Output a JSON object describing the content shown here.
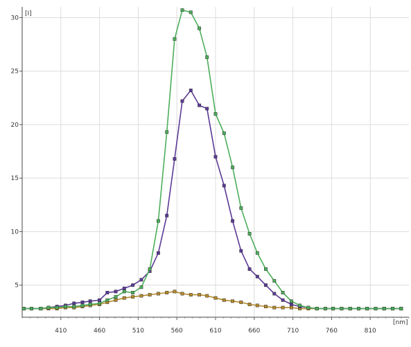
{
  "chart_data": {
    "type": "line",
    "ylabel": "[I]",
    "xlabel": "[nm]",
    "xlim": [
      360,
      860
    ],
    "ylim": [
      2,
      31
    ],
    "x_ticks": [
      410,
      460,
      510,
      560,
      610,
      660,
      710,
      760,
      810
    ],
    "y_ticks": [
      5,
      10,
      15,
      20,
      25,
      30
    ],
    "grid": true,
    "series": [
      {
        "color": "#4cae5a",
        "x": [
          362,
          372,
          384,
          394,
          405,
          416,
          427,
          438,
          448,
          460,
          470,
          481,
          492,
          503,
          514,
          525,
          536,
          547,
          557,
          567,
          578,
          589,
          599,
          610,
          621,
          632,
          643,
          654,
          664,
          675,
          686,
          697,
          708,
          719,
          730,
          741,
          752,
          762,
          773,
          784,
          795,
          806,
          817,
          828,
          839,
          850
        ],
        "values": [
          2.8,
          2.8,
          2.8,
          2.9,
          2.9,
          3.0,
          3.0,
          3.1,
          3.2,
          3.3,
          3.6,
          3.9,
          4.4,
          4.3,
          4.8,
          6.5,
          11.0,
          19.3,
          28.0,
          30.7,
          30.5,
          29.0,
          26.3,
          21.0,
          19.2,
          16.0,
          12.2,
          9.8,
          8.0,
          6.5,
          5.4,
          4.3,
          3.5,
          3.1,
          2.9,
          2.8,
          2.8,
          2.8,
          2.8,
          2.8,
          2.8,
          2.8,
          2.8,
          2.8,
          2.8,
          2.8
        ]
      },
      {
        "color": "#5b3a96",
        "x": [
          362,
          372,
          384,
          394,
          405,
          416,
          427,
          438,
          448,
          460,
          470,
          481,
          492,
          503,
          514,
          525,
          536,
          547,
          557,
          567,
          578,
          589,
          599,
          610,
          621,
          632,
          643,
          654,
          664,
          675,
          686,
          697,
          708,
          719,
          730,
          741,
          752,
          762,
          773,
          784,
          795,
          806,
          817,
          828,
          839,
          850
        ],
        "values": [
          2.8,
          2.8,
          2.8,
          2.9,
          3.0,
          3.1,
          3.3,
          3.4,
          3.5,
          3.6,
          4.3,
          4.4,
          4.7,
          5.0,
          5.5,
          6.3,
          8.0,
          11.5,
          16.8,
          22.2,
          23.2,
          21.8,
          21.5,
          17.0,
          14.3,
          11.0,
          8.2,
          6.5,
          5.8,
          5.0,
          4.2,
          3.6,
          3.2,
          3.0,
          2.9,
          2.8,
          2.8,
          2.8,
          2.8,
          2.8,
          2.8,
          2.8,
          2.8,
          2.8,
          2.8,
          2.8
        ]
      },
      {
        "color": "#b58a2c",
        "x": [
          362,
          372,
          384,
          394,
          405,
          416,
          427,
          438,
          448,
          460,
          470,
          481,
          492,
          503,
          514,
          525,
          536,
          547,
          557,
          567,
          578,
          589,
          599,
          610,
          621,
          632,
          643,
          654,
          664,
          675,
          686,
          697,
          708,
          719,
          730,
          741,
          752,
          762,
          773,
          784,
          795,
          806,
          817,
          828,
          839,
          850
        ],
        "values": [
          2.8,
          2.8,
          2.8,
          2.8,
          2.8,
          2.9,
          2.9,
          3.0,
          3.1,
          3.2,
          3.4,
          3.6,
          3.8,
          3.9,
          4.0,
          4.1,
          4.2,
          4.3,
          4.4,
          4.2,
          4.1,
          4.1,
          4.0,
          3.8,
          3.6,
          3.5,
          3.4,
          3.2,
          3.1,
          3.0,
          2.9,
          2.9,
          2.9,
          2.8,
          2.8,
          2.8,
          2.8,
          2.8,
          2.8,
          2.8,
          2.8,
          2.8,
          2.8,
          2.8,
          2.8,
          2.8
        ]
      }
    ]
  }
}
